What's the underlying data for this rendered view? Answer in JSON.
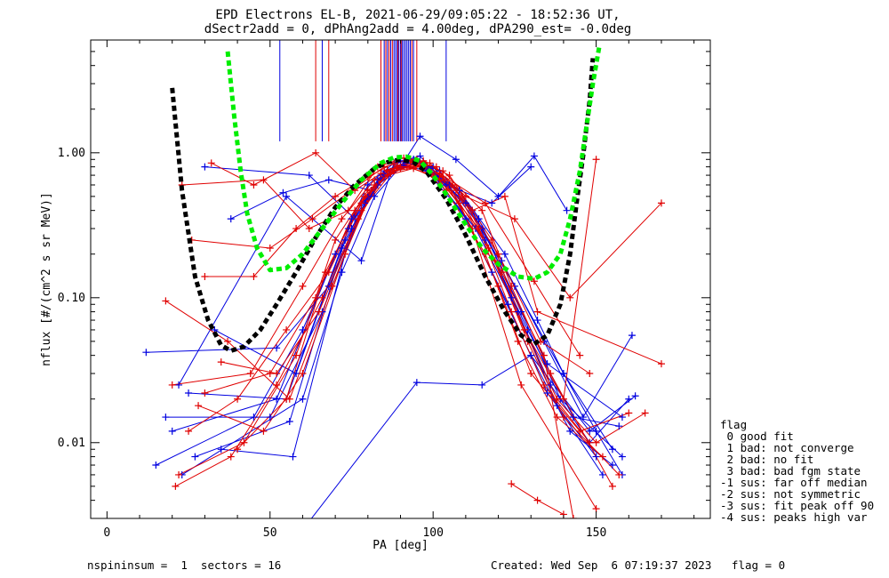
{
  "title": {
    "line1": "EPD Electrons EL-B, 2021-06-29/09:05:22 - 18:52:36 UT,",
    "line2": "dSectr2add = 0, dPhAng2add = 4.00deg, dPA290_est=  -0.0deg"
  },
  "footer": {
    "left": "nspininsum =  1  sectors = 16",
    "right": "Created: Wed Sep  6 07:19:37 2023   flag = 0"
  },
  "legend": {
    "title": "flag",
    "items": [
      " 0 good fit",
      " 1 bad: not converge",
      " 2 bad: no fit",
      " 3 bad: bad fgm state",
      "-1 sus: far off median",
      "-2 sus: not symmetric",
      "-3 sus: fit peak off 90",
      "-4 sus: peaks high var"
    ]
  },
  "colors": {
    "red": "#e00000",
    "blue": "#0000e0",
    "black": "#000000",
    "green": "#00ee00"
  },
  "chart_data": {
    "type": "line",
    "xlabel": "PA [deg]",
    "ylabel": "nflux [#/(cm^2 s sr MeV)]",
    "xlim": [
      -5,
      185
    ],
    "ylim": [
      0.003,
      6.0
    ],
    "yscale": "log",
    "xticks": [
      0,
      50,
      100,
      150
    ],
    "xtick_labels": [
      "0",
      "50",
      "100",
      "150"
    ],
    "yticks": [
      0.01,
      0.1,
      1.0
    ],
    "ytick_labels": [
      "0.01",
      "0.10",
      "1.00"
    ],
    "fit_curves": [
      {
        "color": "black",
        "x": [
          20,
          23,
          27,
          31,
          35,
          38,
          42,
          47,
          52,
          58,
          64,
          70,
          76,
          82,
          86,
          90,
          94,
          98,
          104,
          110,
          116,
          122,
          127,
          131,
          135,
          139,
          142,
          144,
          146,
          148,
          149
        ],
        "y": [
          2.8,
          0.55,
          0.14,
          0.07,
          0.047,
          0.043,
          0.046,
          0.06,
          0.09,
          0.15,
          0.26,
          0.42,
          0.6,
          0.78,
          0.86,
          0.9,
          0.86,
          0.74,
          0.48,
          0.27,
          0.14,
          0.08,
          0.055,
          0.048,
          0.055,
          0.09,
          0.2,
          0.45,
          0.95,
          2.3,
          4.5
        ]
      },
      {
        "color": "green",
        "x": [
          37,
          39,
          41,
          43,
          46,
          50,
          55,
          60,
          66,
          72,
          78,
          84,
          88,
          92,
          96,
          100,
          105,
          110,
          115,
          120,
          126,
          131,
          135,
          139,
          142,
          145,
          147,
          149,
          151
        ],
        "y": [
          5.0,
          1.8,
          0.75,
          0.38,
          0.22,
          0.155,
          0.16,
          0.2,
          0.3,
          0.45,
          0.65,
          0.85,
          0.93,
          0.94,
          0.88,
          0.7,
          0.48,
          0.32,
          0.22,
          0.17,
          0.14,
          0.135,
          0.15,
          0.2,
          0.35,
          0.75,
          1.5,
          3.0,
          5.5
        ]
      }
    ],
    "vertical_lines": {
      "ymin": 1.2,
      "blue": [
        53,
        66,
        85,
        86,
        87,
        88,
        88.5,
        89,
        89.5,
        90,
        90.5,
        91,
        91.5,
        92,
        92.5,
        93,
        94,
        104
      ],
      "red": [
        64,
        68,
        84,
        85.5,
        86.5,
        87.5,
        89.2,
        90.2,
        93.5,
        95
      ]
    },
    "series": [
      {
        "color": "blue",
        "x": [
          23,
          60,
          72,
          82,
          90,
          96,
          108,
          122,
          132,
          140,
          150,
          158
        ],
        "y": [
          0.006,
          0.02,
          0.15,
          0.5,
          0.8,
          0.85,
          0.55,
          0.2,
          0.07,
          0.03,
          0.012,
          0.006
        ]
      },
      {
        "color": "blue",
        "x": [
          20,
          52,
          70,
          80,
          88,
          94,
          105,
          118,
          130,
          142,
          155
        ],
        "y": [
          0.012,
          0.02,
          0.2,
          0.6,
          0.85,
          0.9,
          0.6,
          0.15,
          0.04,
          0.012,
          0.007
        ]
      },
      {
        "color": "blue",
        "x": [
          27,
          56,
          73,
          84,
          92,
          98,
          112,
          124,
          136,
          148,
          160
        ],
        "y": [
          0.008,
          0.014,
          0.25,
          0.7,
          0.85,
          0.8,
          0.4,
          0.1,
          0.025,
          0.01,
          0.02
        ]
      },
      {
        "color": "blue",
        "x": [
          30,
          62,
          76,
          86,
          94,
          102,
          114,
          127,
          139,
          158
        ],
        "y": [
          0.8,
          0.7,
          0.35,
          0.75,
          0.9,
          0.75,
          0.35,
          0.08,
          0.02,
          0.008
        ]
      },
      {
        "color": "blue",
        "x": [
          12,
          52,
          68,
          80,
          90,
          97,
          110,
          125,
          140,
          155
        ],
        "y": [
          0.042,
          0.045,
          0.12,
          0.5,
          0.88,
          0.85,
          0.45,
          0.12,
          0.03,
          0.009
        ]
      },
      {
        "color": "blue",
        "x": [
          25,
          55,
          74,
          83,
          91,
          98,
          116,
          129,
          143,
          157
        ],
        "y": [
          0.022,
          0.02,
          0.3,
          0.65,
          0.82,
          0.75,
          0.25,
          0.06,
          0.015,
          0.013
        ]
      },
      {
        "color": "blue",
        "x": [
          18,
          50,
          66,
          79,
          89,
          95,
          108,
          121,
          134,
          146,
          161
        ],
        "y": [
          0.015,
          0.015,
          0.08,
          0.45,
          0.86,
          0.88,
          0.55,
          0.18,
          0.05,
          0.015,
          0.055
        ]
      },
      {
        "color": "blue",
        "x": [
          35,
          57,
          75,
          85,
          93,
          100,
          113,
          126,
          138,
          152
        ],
        "y": [
          0.009,
          0.008,
          0.3,
          0.72,
          0.9,
          0.7,
          0.3,
          0.08,
          0.018,
          0.006
        ]
      },
      {
        "color": "blue",
        "x": [
          22,
          55,
          78,
          88,
          96,
          104,
          118,
          130
        ],
        "y": [
          0.025,
          0.5,
          0.18,
          0.85,
          0.95,
          0.6,
          0.45,
          0.8
        ]
      },
      {
        "color": "blue",
        "x": [
          60,
          95,
          115,
          130,
          148,
          162
        ],
        "y": [
          0.0025,
          0.026,
          0.025,
          0.04,
          0.012,
          0.021
        ]
      },
      {
        "color": "blue",
        "x": [
          15,
          45,
          60,
          75,
          85,
          93,
          100,
          115,
          135,
          158
        ],
        "y": [
          0.007,
          0.015,
          0.06,
          0.35,
          0.75,
          0.88,
          0.8,
          0.3,
          0.035,
          0.015
        ]
      },
      {
        "color": "blue",
        "x": [
          38,
          54,
          68,
          81,
          90,
          96,
          107,
          120,
          131,
          141
        ],
        "y": [
          0.35,
          0.53,
          0.65,
          0.55,
          0.8,
          1.3,
          0.9,
          0.5,
          0.95,
          0.4
        ]
      },
      {
        "color": "blue",
        "x": [
          33,
          58,
          72,
          83,
          92,
          99,
          110,
          123,
          135,
          150
        ],
        "y": [
          0.06,
          0.03,
          0.22,
          0.6,
          0.85,
          0.78,
          0.35,
          0.09,
          0.022,
          0.008
        ]
      },
      {
        "color": "red",
        "x": [
          22,
          42,
          58,
          70,
          80,
          88,
          96,
          104,
          116,
          126,
          138,
          152
        ],
        "y": [
          0.006,
          0.01,
          0.04,
          0.25,
          0.55,
          0.75,
          0.8,
          0.55,
          0.2,
          0.05,
          0.015,
          0.008
        ]
      },
      {
        "color": "red",
        "x": [
          25,
          40,
          55,
          68,
          78,
          86,
          94,
          102,
          114,
          124,
          134,
          148
        ],
        "y": [
          0.012,
          0.02,
          0.06,
          0.15,
          0.45,
          0.7,
          0.78,
          0.65,
          0.3,
          0.08,
          0.025,
          0.01
        ]
      },
      {
        "color": "red",
        "x": [
          20,
          44,
          60,
          72,
          82,
          90,
          98,
          108,
          120,
          130,
          145,
          160
        ],
        "y": [
          0.025,
          0.03,
          0.12,
          0.35,
          0.65,
          0.78,
          0.82,
          0.45,
          0.12,
          0.03,
          0.012,
          0.016
        ]
      },
      {
        "color": "red",
        "x": [
          32,
          45,
          64,
          76,
          84,
          92,
          100,
          112,
          122,
          132,
          170
        ],
        "y": [
          0.85,
          0.6,
          1.0,
          0.55,
          0.72,
          0.8,
          0.7,
          0.4,
          0.5,
          0.08,
          0.035
        ]
      },
      {
        "color": "red",
        "x": [
          23,
          48,
          62,
          74,
          83,
          91,
          99,
          110,
          125,
          142,
          170
        ],
        "y": [
          0.6,
          0.65,
          0.3,
          0.4,
          0.8,
          0.92,
          0.85,
          0.5,
          0.35,
          0.1,
          0.45
        ]
      },
      {
        "color": "red",
        "x": [
          30,
          45,
          58,
          70,
          80,
          88,
          95,
          105,
          118,
          128,
          140,
          150
        ],
        "y": [
          0.14,
          0.14,
          0.3,
          0.5,
          0.68,
          0.85,
          0.9,
          0.7,
          0.25,
          0.06,
          0.02,
          0.9
        ]
      },
      {
        "color": "red",
        "x": [
          21,
          38,
          52,
          66,
          78,
          87,
          95,
          103,
          115,
          124,
          136,
          155
        ],
        "y": [
          0.005,
          0.008,
          0.025,
          0.1,
          0.4,
          0.72,
          0.85,
          0.75,
          0.4,
          0.12,
          0.03,
          0.005
        ]
      },
      {
        "color": "red",
        "x": [
          35,
          52,
          65,
          77,
          86,
          93,
          101,
          112,
          127,
          150
        ],
        "y": [
          0.036,
          0.03,
          0.08,
          0.35,
          0.75,
          0.88,
          0.8,
          0.3,
          0.025,
          0.0035
        ]
      },
      {
        "color": "red",
        "x": [
          28,
          48,
          60,
          73,
          82,
          90,
          97,
          106,
          120,
          133,
          148
        ],
        "y": [
          0.018,
          0.012,
          0.03,
          0.2,
          0.6,
          0.8,
          0.86,
          0.6,
          0.2,
          0.05,
          0.03
        ]
      },
      {
        "color": "red",
        "x": [
          40,
          55,
          67,
          79,
          88,
          96,
          107,
          119,
          129,
          140,
          157
        ],
        "y": [
          0.009,
          0.02,
          0.15,
          0.5,
          0.78,
          0.82,
          0.55,
          0.18,
          0.05,
          0.015,
          0.006
        ]
      },
      {
        "color": "red",
        "x": [
          26,
          50,
          63,
          75,
          85,
          93,
          102,
          116,
          131,
          145
        ],
        "y": [
          0.25,
          0.22,
          0.35,
          0.55,
          0.8,
          0.9,
          0.72,
          0.45,
          0.13,
          0.04
        ]
      },
      {
        "color": "red",
        "x": [
          18,
          37,
          56,
          69,
          81,
          89,
          97,
          109,
          121,
          134,
          143
        ],
        "y": [
          0.095,
          0.05,
          0.02,
          0.12,
          0.55,
          0.82,
          0.88,
          0.5,
          0.15,
          0.04,
          0.003
        ]
      },
      {
        "color": "red",
        "x": [
          30,
          50,
          64,
          76,
          86,
          94,
          103,
          117,
          128,
          138,
          150,
          165
        ],
        "y": [
          0.022,
          0.03,
          0.1,
          0.4,
          0.76,
          0.86,
          0.68,
          0.22,
          0.06,
          0.02,
          0.01,
          0.016
        ]
      },
      {
        "color": "red",
        "x": [
          124,
          132,
          140
        ],
        "y": [
          0.0052,
          0.004,
          0.0032
        ]
      }
    ]
  }
}
